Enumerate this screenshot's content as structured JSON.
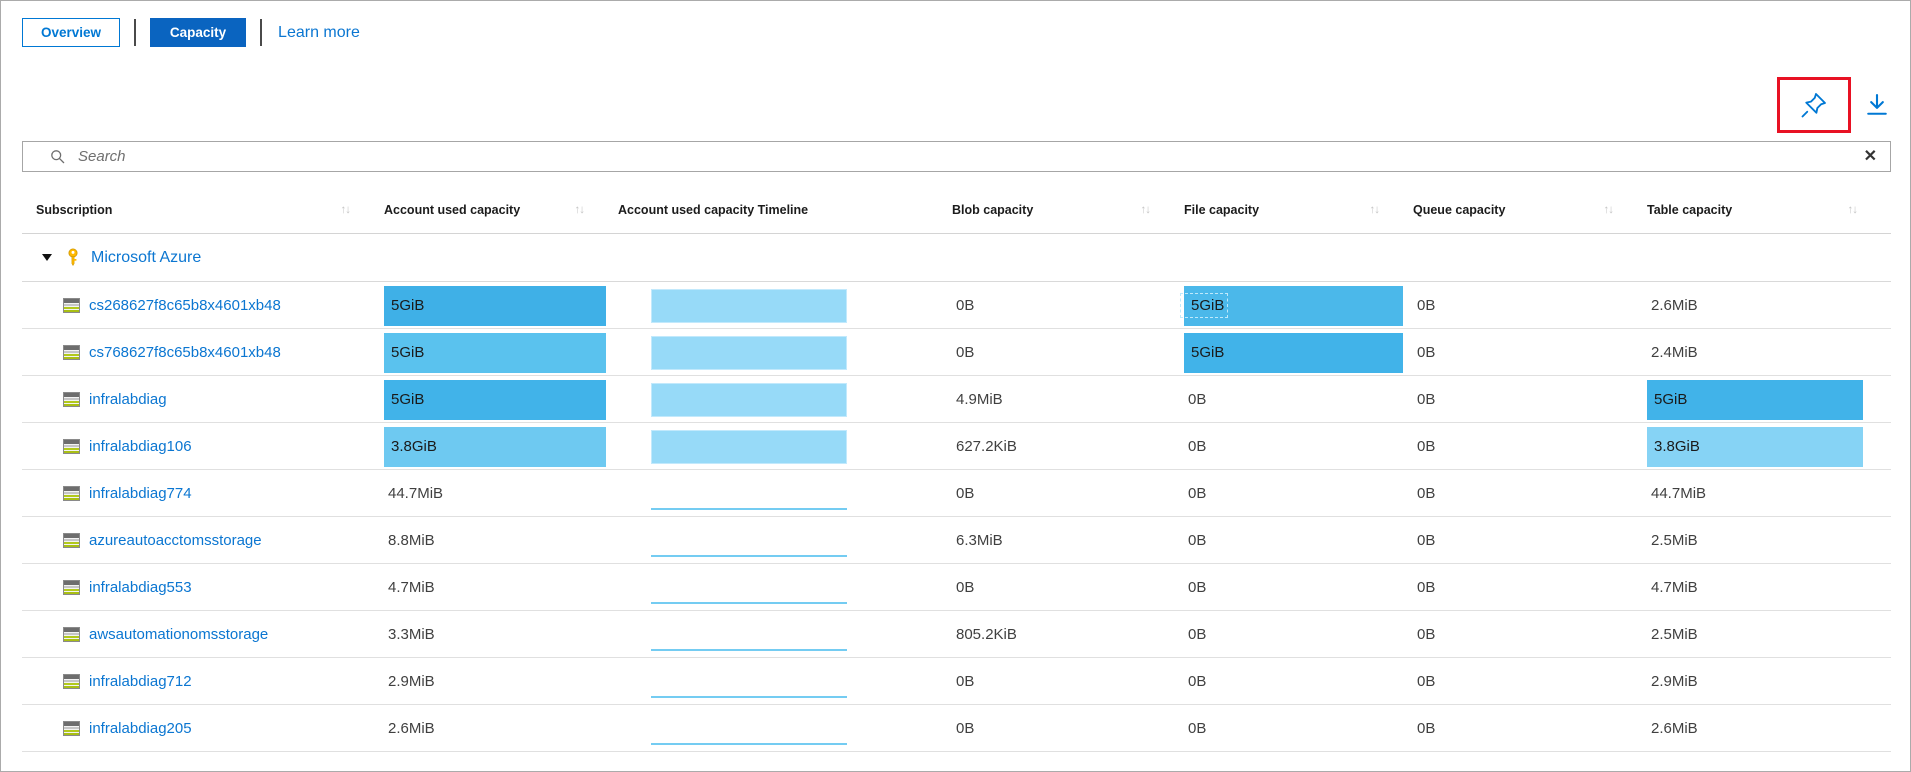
{
  "tabs": {
    "overview": "Overview",
    "capacity": "Capacity",
    "learn_more": "Learn more"
  },
  "search": {
    "placeholder": "Search",
    "clear_glyph": "✕"
  },
  "icons": {
    "search": "magnifier",
    "pin": "pushpin",
    "download": "arrow-down-with-underline",
    "clear": "x-mark",
    "expand": "triangle-down",
    "key": "yellow-key",
    "storage_account": "storage-account-grid",
    "sort": "↑↓"
  },
  "colors": {
    "accent": "#0078d4",
    "capacity_tab_bg": "#0a64c0",
    "highlight_red": "#e81123",
    "bar_blue": "#41b3e9",
    "timeline_fill": "#97daf8",
    "timeline_line": "#74ccf2"
  },
  "table": {
    "columns": [
      {
        "label": "Subscription",
        "sortable": true
      },
      {
        "label": "Account used capacity",
        "sortable": true
      },
      {
        "label": "Account used capacity Timeline",
        "sortable": false
      },
      {
        "label": "Blob capacity",
        "sortable": true
      },
      {
        "label": "File capacity",
        "sortable": true
      },
      {
        "label": "Queue capacity",
        "sortable": true
      },
      {
        "label": "Table capacity",
        "sortable": true
      }
    ],
    "group": {
      "label": "Microsoft Azure"
    },
    "rows": [
      {
        "name": "cs268627f8c65b8x4601xb48",
        "cells": {
          "account": {
            "text": "5GiB",
            "bar": "#3fb0e7"
          },
          "timeline": "block",
          "blob": {
            "text": "0B"
          },
          "file": {
            "text": "5GiB",
            "bar": "#4bb8ea",
            "focus": true
          },
          "queue": {
            "text": "0B"
          },
          "table": {
            "text": "2.6MiB"
          }
        }
      },
      {
        "name": "cs768627f8c65b8x4601xb48",
        "cells": {
          "account": {
            "text": "5GiB",
            "bar": "#5ac2ee"
          },
          "timeline": "block",
          "blob": {
            "text": "0B"
          },
          "file": {
            "text": "5GiB",
            "bar": "#41b3e9"
          },
          "queue": {
            "text": "0B"
          },
          "table": {
            "text": "2.4MiB"
          }
        }
      },
      {
        "name": "infralabdiag",
        "cells": {
          "account": {
            "text": "5GiB",
            "bar": "#41b3e9"
          },
          "timeline": "block",
          "blob": {
            "text": "4.9MiB"
          },
          "file": {
            "text": "0B"
          },
          "queue": {
            "text": "0B"
          },
          "table": {
            "text": "5GiB",
            "bar": "#41b3e9"
          }
        }
      },
      {
        "name": "infralabdiag106",
        "cells": {
          "account": {
            "text": "3.8GiB",
            "bar": "#6ec9f1"
          },
          "timeline": "block",
          "blob": {
            "text": "627.2KiB"
          },
          "file": {
            "text": "0B"
          },
          "queue": {
            "text": "0B"
          },
          "table": {
            "text": "3.8GiB",
            "bar": "#86d3f5"
          }
        }
      },
      {
        "name": "infralabdiag774",
        "cells": {
          "account": {
            "text": "44.7MiB"
          },
          "timeline": "line",
          "blob": {
            "text": "0B"
          },
          "file": {
            "text": "0B"
          },
          "queue": {
            "text": "0B"
          },
          "table": {
            "text": "44.7MiB"
          }
        }
      },
      {
        "name": "azureautoacctomsstorage",
        "cells": {
          "account": {
            "text": "8.8MiB"
          },
          "timeline": "line",
          "blob": {
            "text": "6.3MiB"
          },
          "file": {
            "text": "0B"
          },
          "queue": {
            "text": "0B"
          },
          "table": {
            "text": "2.5MiB"
          }
        }
      },
      {
        "name": "infralabdiag553",
        "cells": {
          "account": {
            "text": "4.7MiB"
          },
          "timeline": "line",
          "blob": {
            "text": "0B"
          },
          "file": {
            "text": "0B"
          },
          "queue": {
            "text": "0B"
          },
          "table": {
            "text": "4.7MiB"
          }
        }
      },
      {
        "name": "awsautomationomsstorage",
        "cells": {
          "account": {
            "text": "3.3MiB"
          },
          "timeline": "line",
          "blob": {
            "text": "805.2KiB"
          },
          "file": {
            "text": "0B"
          },
          "queue": {
            "text": "0B"
          },
          "table": {
            "text": "2.5MiB"
          }
        }
      },
      {
        "name": "infralabdiag712",
        "cells": {
          "account": {
            "text": "2.9MiB"
          },
          "timeline": "line",
          "blob": {
            "text": "0B"
          },
          "file": {
            "text": "0B"
          },
          "queue": {
            "text": "0B"
          },
          "table": {
            "text": "2.9MiB"
          }
        }
      },
      {
        "name": "infralabdiag205",
        "cells": {
          "account": {
            "text": "2.6MiB"
          },
          "timeline": "line",
          "blob": {
            "text": "0B"
          },
          "file": {
            "text": "0B"
          },
          "queue": {
            "text": "0B"
          },
          "table": {
            "text": "2.6MiB"
          }
        }
      }
    ]
  }
}
